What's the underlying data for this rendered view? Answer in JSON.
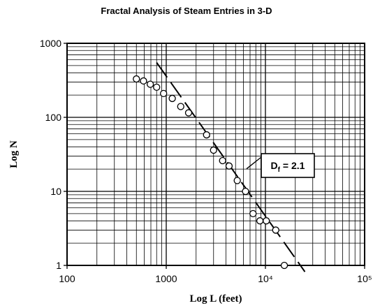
{
  "chart_data": {
    "type": "scatter",
    "title": "Fractal Analysis of Steam Entries in 3-D",
    "xlabel": "Log L   (feet)",
    "ylabel": "Log N",
    "x_scale": "log",
    "y_scale": "log",
    "xlim": [
      100,
      100000
    ],
    "ylim": [
      1,
      1000
    ],
    "grid": true,
    "x_ticks": [
      {
        "value": 100,
        "label": "100"
      },
      {
        "value": 1000,
        "label": "1000"
      },
      {
        "value": 10000,
        "label": "10⁴"
      },
      {
        "value": 100000,
        "label": "10⁵"
      }
    ],
    "y_ticks": [
      {
        "value": 1,
        "label": "1"
      },
      {
        "value": 10,
        "label": "10"
      },
      {
        "value": 100,
        "label": "100"
      },
      {
        "value": 1000,
        "label": "1000"
      }
    ],
    "series": [
      {
        "marker": "circle",
        "points": [
          {
            "x": 500,
            "y": 330
          },
          {
            "x": 590,
            "y": 310
          },
          {
            "x": 690,
            "y": 280
          },
          {
            "x": 800,
            "y": 255
          },
          {
            "x": 940,
            "y": 210
          },
          {
            "x": 1150,
            "y": 180
          },
          {
            "x": 1400,
            "y": 140
          },
          {
            "x": 1680,
            "y": 115
          },
          {
            "x": 2550,
            "y": 58
          },
          {
            "x": 3000,
            "y": 36
          },
          {
            "x": 3700,
            "y": 26
          },
          {
            "x": 4300,
            "y": 22
          },
          {
            "x": 5200,
            "y": 14
          },
          {
            "x": 6300,
            "y": 10
          },
          {
            "x": 7500,
            "y": 5
          },
          {
            "x": 8800,
            "y": 4
          },
          {
            "x": 10200,
            "y": 4
          },
          {
            "x": 12700,
            "y": 3
          },
          {
            "x": 15500,
            "y": 1
          }
        ]
      }
    ],
    "fit_line": {
      "style": "dashed",
      "x": [
        800,
        25000
      ],
      "y": [
        550,
        0.82
      ]
    },
    "annotations": [
      {
        "base": "D",
        "sub": "f",
        "text": " = 2.1"
      }
    ]
  }
}
